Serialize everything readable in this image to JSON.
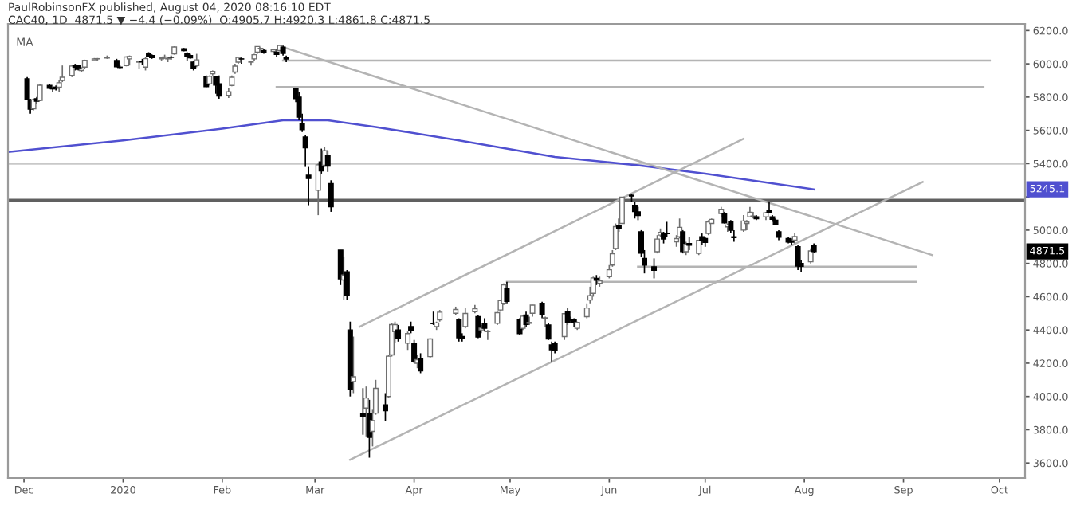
{
  "chart_data": {
    "type": "candlestick",
    "annotations": [
      "PaulRobinsonFX published, August 04, 2020 08:16:10 EDT",
      "CAC40, 1D  4871.5 ▼ −4.4 (−0.09%)  O:4905.7 H:4920.3 L:4861.8 C:4871.5",
      "MA",
      "5245.1",
      "4871.5"
    ],
    "xlim": [
      "2019-11-26",
      "2020-10-09"
    ],
    "xticks": [
      {
        "value": "2019-12-01",
        "label": "Dec"
      },
      {
        "value": "2020-01-01",
        "label": "2020"
      },
      {
        "value": "2020-02-01",
        "label": "Feb"
      },
      {
        "value": "2020-03-01",
        "label": "Mar"
      },
      {
        "value": "2020-04-01",
        "label": "Apr"
      },
      {
        "value": "2020-05-01",
        "label": "May"
      },
      {
        "value": "2020-06-01",
        "label": "Jun"
      },
      {
        "value": "2020-07-01",
        "label": "Jul"
      },
      {
        "value": "2020-08-01",
        "label": "Aug"
      },
      {
        "value": "2020-09-01",
        "label": "Sep"
      },
      {
        "value": "2020-10-01",
        "label": "Oct"
      }
    ],
    "ylim": [
      3510,
      6240
    ],
    "yticks": [
      {
        "value": 3600,
        "label": "3600.0"
      },
      {
        "value": 3800,
        "label": "3800.0"
      },
      {
        "value": 4000,
        "label": "4000.0"
      },
      {
        "value": 4200,
        "label": "4200.0"
      },
      {
        "value": 4400,
        "label": "4400.0"
      },
      {
        "value": 4600,
        "label": "4600.0"
      },
      {
        "value": 4800,
        "label": "4800.0"
      },
      {
        "value": 5000,
        "label": "5000.0"
      },
      {
        "value": 5200,
        "label": null
      },
      {
        "value": 5400,
        "label": "5400.0"
      },
      {
        "value": 5600,
        "label": "5600.0"
      },
      {
        "value": 5800,
        "label": "5800.0"
      },
      {
        "value": 6000,
        "label": "6000.0"
      },
      {
        "value": 6200,
        "label": "6200.0"
      }
    ],
    "grid": false,
    "legend": false,
    "ref_lines": [
      {
        "axis": "y",
        "value": 5400,
        "color": "#c8c8c8"
      },
      {
        "axis": "y",
        "value": 5180,
        "color": "#606060"
      }
    ],
    "x": [
      "2019-12-02",
      "2019-12-03",
      "2019-12-04",
      "2019-12-05",
      "2019-12-06",
      "2019-12-09",
      "2019-12-10",
      "2019-12-11",
      "2019-12-12",
      "2019-12-13",
      "2019-12-16",
      "2019-12-17",
      "2019-12-18",
      "2019-12-19",
      "2019-12-20",
      "2019-12-23",
      "2019-12-24",
      "2019-12-27",
      "2019-12-30",
      "2019-12-31",
      "2020-01-02",
      "2020-01-03",
      "2020-01-06",
      "2020-01-07",
      "2020-01-08",
      "2020-01-09",
      "2020-01-10",
      "2020-01-13",
      "2020-01-14",
      "2020-01-15",
      "2020-01-16",
      "2020-01-17",
      "2020-01-20",
      "2020-01-21",
      "2020-01-22",
      "2020-01-23",
      "2020-01-24",
      "2020-01-27",
      "2020-01-28",
      "2020-01-29",
      "2020-01-30",
      "2020-01-31",
      "2020-02-03",
      "2020-02-04",
      "2020-02-05",
      "2020-02-06",
      "2020-02-07",
      "2020-02-10",
      "2020-02-11",
      "2020-02-12",
      "2020-02-13",
      "2020-02-14",
      "2020-02-17",
      "2020-02-18",
      "2020-02-19",
      "2020-02-20",
      "2020-02-21",
      "2020-02-24",
      "2020-02-25",
      "2020-02-26",
      "2020-02-27",
      "2020-02-28",
      "2020-03-02",
      "2020-03-03",
      "2020-03-04",
      "2020-03-05",
      "2020-03-06",
      "2020-03-09",
      "2020-03-10",
      "2020-03-11",
      "2020-03-12",
      "2020-03-13",
      "2020-03-16",
      "2020-03-17",
      "2020-03-18",
      "2020-03-19",
      "2020-03-20",
      "2020-03-23",
      "2020-03-24",
      "2020-03-25",
      "2020-03-26",
      "2020-03-27",
      "2020-03-30",
      "2020-03-31",
      "2020-04-01",
      "2020-04-02",
      "2020-04-03",
      "2020-04-06",
      "2020-04-07",
      "2020-04-08",
      "2020-04-09",
      "2020-04-14",
      "2020-04-15",
      "2020-04-16",
      "2020-04-17",
      "2020-04-20",
      "2020-04-21",
      "2020-04-22",
      "2020-04-23",
      "2020-04-24",
      "2020-04-27",
      "2020-04-28",
      "2020-04-29",
      "2020-04-30",
      "2020-05-04",
      "2020-05-05",
      "2020-05-06",
      "2020-05-07",
      "2020-05-08",
      "2020-05-11",
      "2020-05-12",
      "2020-05-13",
      "2020-05-14",
      "2020-05-15",
      "2020-05-18",
      "2020-05-19",
      "2020-05-20",
      "2020-05-21",
      "2020-05-22",
      "2020-05-25",
      "2020-05-26",
      "2020-05-27",
      "2020-05-28",
      "2020-05-29",
      "2020-06-01",
      "2020-06-02",
      "2020-06-03",
      "2020-06-04",
      "2020-06-05",
      "2020-06-08",
      "2020-06-09",
      "2020-06-10",
      "2020-06-11",
      "2020-06-12",
      "2020-06-15",
      "2020-06-16",
      "2020-06-17",
      "2020-06-18",
      "2020-06-19",
      "2020-06-22",
      "2020-06-23",
      "2020-06-24",
      "2020-06-25",
      "2020-06-26",
      "2020-06-29",
      "2020-06-30",
      "2020-07-01",
      "2020-07-02",
      "2020-07-03",
      "2020-07-06",
      "2020-07-07",
      "2020-07-08",
      "2020-07-09",
      "2020-07-10",
      "2020-07-13",
      "2020-07-14",
      "2020-07-15",
      "2020-07-16",
      "2020-07-17",
      "2020-07-20",
      "2020-07-21",
      "2020-07-22",
      "2020-07-23",
      "2020-07-24",
      "2020-07-27",
      "2020-07-28",
      "2020-07-29",
      "2020-07-30",
      "2020-07-31",
      "2020-08-03",
      "2020-08-04"
    ],
    "ohlc": [
      [
        5910,
        5920,
        5780,
        5786
      ],
      [
        5780,
        5790,
        5700,
        5727
      ],
      [
        5730,
        5790,
        5720,
        5784
      ],
      [
        5790,
        5800,
        5760,
        5775
      ],
      [
        5780,
        5880,
        5775,
        5871
      ],
      [
        5870,
        5880,
        5850,
        5853
      ],
      [
        5850,
        5860,
        5830,
        5849
      ],
      [
        5860,
        5870,
        5840,
        5854
      ],
      [
        5860,
        5900,
        5830,
        5886
      ],
      [
        5900,
        5990,
        5890,
        5919
      ],
      [
        5930,
        5990,
        5920,
        5987
      ],
      [
        5990,
        6000,
        5960,
        5980
      ],
      [
        5990,
        5995,
        5960,
        5967
      ],
      [
        5960,
        5980,
        5950,
        5970
      ],
      [
        5980,
        6025,
        5970,
        6021
      ],
      [
        6020,
        6035,
        6015,
        6029
      ],
      [
        6030,
        6035,
        6020,
        6030
      ],
      [
        6035,
        6050,
        6030,
        6037
      ],
      [
        6020,
        6030,
        5980,
        5982
      ],
      [
        5980,
        5990,
        5970,
        5978
      ],
      [
        5990,
        6045,
        5985,
        6041
      ],
      [
        6030,
        6050,
        5990,
        6044
      ],
      [
        6010,
        6020,
        5970,
        6013
      ],
      [
        6015,
        6030,
        5995,
        6012
      ],
      [
        5980,
        6040,
        5960,
        6031
      ],
      [
        6060,
        6070,
        6040,
        6042
      ],
      [
        6050,
        6057,
        6030,
        6037
      ],
      [
        6030,
        6040,
        6020,
        6036
      ],
      [
        6040,
        6055,
        6030,
        6040
      ],
      [
        6030,
        6040,
        6010,
        6032
      ],
      [
        6040,
        6050,
        6025,
        6039
      ],
      [
        6060,
        6105,
        6055,
        6101
      ],
      [
        6090,
        6095,
        6075,
        6079
      ],
      [
        6060,
        6070,
        6020,
        6045
      ],
      [
        6050,
        6060,
        6030,
        6036
      ],
      [
        6010,
        6020,
        5960,
        5971
      ],
      [
        5990,
        6060,
        5980,
        6024
      ],
      [
        5920,
        5930,
        5860,
        5863
      ],
      [
        5880,
        5930,
        5870,
        5925
      ],
      [
        5940,
        5960,
        5930,
        5954
      ],
      [
        5920,
        5925,
        5820,
        5872
      ],
      [
        5880,
        5930,
        5790,
        5806
      ],
      [
        5810,
        5855,
        5795,
        5832
      ],
      [
        5870,
        5930,
        5865,
        5919
      ],
      [
        5950,
        6000,
        5940,
        5986
      ],
      [
        6010,
        6040,
        6000,
        6038
      ],
      [
        6030,
        6040,
        6000,
        6029
      ],
      [
        6010,
        6020,
        5990,
        6016
      ],
      [
        6030,
        6060,
        6020,
        6055
      ],
      [
        6070,
        6105,
        6060,
        6104
      ],
      [
        6090,
        6100,
        6070,
        6093
      ],
      [
        6080,
        6090,
        6060,
        6069
      ],
      [
        6075,
        6085,
        6070,
        6085
      ],
      [
        6070,
        6090,
        6040,
        6057
      ],
      [
        6080,
        6115,
        6075,
        6111
      ],
      [
        6100,
        6110,
        6050,
        6063
      ],
      [
        6040,
        6050,
        6010,
        6029
      ],
      [
        5850,
        5850,
        5770,
        5791
      ],
      [
        5800,
        5830,
        5660,
        5679
      ],
      [
        5640,
        5700,
        5590,
        5604
      ],
      [
        5560,
        5570,
        5380,
        5495
      ],
      [
        5330,
        5380,
        5150,
        5310
      ],
      [
        5240,
        5400,
        5090,
        5393
      ],
      [
        5410,
        5490,
        5340,
        5356
      ],
      [
        5390,
        5500,
        5380,
        5478
      ],
      [
        5450,
        5480,
        5350,
        5385
      ],
      [
        5280,
        5300,
        5110,
        5140
      ],
      [
        4880,
        4880,
        4670,
        4707
      ],
      [
        4700,
        4840,
        4580,
        4730
      ],
      [
        4750,
        4760,
        4580,
        4610
      ],
      [
        4400,
        4450,
        4000,
        4044
      ],
      [
        4090,
        4360,
        4020,
        4118
      ],
      [
        3900,
        4050,
        3770,
        3881
      ],
      [
        3930,
        4060,
        3760,
        3991
      ],
      [
        3900,
        3980,
        3632,
        3754
      ],
      [
        3790,
        3920,
        3700,
        3855
      ],
      [
        3900,
        4100,
        3890,
        4049
      ],
      [
        3950,
        4020,
        3850,
        3914
      ],
      [
        4000,
        4250,
        3990,
        4242
      ],
      [
        4250,
        4440,
        4240,
        4432
      ],
      [
        4390,
        4450,
        4320,
        4432
      ],
      [
        4400,
        4430,
        4330,
        4351
      ],
      [
        4320,
        4390,
        4280,
        4378
      ],
      [
        4420,
        4450,
        4380,
        4396
      ],
      [
        4320,
        4340,
        4200,
        4208
      ],
      [
        4200,
        4250,
        4170,
        4221
      ],
      [
        4230,
        4260,
        4140,
        4154
      ],
      [
        4240,
        4350,
        4230,
        4346
      ],
      [
        4440,
        4510,
        4430,
        4438
      ],
      [
        4420,
        4450,
        4400,
        4442
      ],
      [
        4460,
        4520,
        4450,
        4507
      ],
      [
        4500,
        4540,
        4490,
        4523
      ],
      [
        4460,
        4470,
        4330,
        4353
      ],
      [
        4360,
        4380,
        4330,
        4350
      ],
      [
        4420,
        4530,
        4410,
        4499
      ],
      [
        4510,
        4550,
        4500,
        4528
      ],
      [
        4480,
        4490,
        4350,
        4357
      ],
      [
        4400,
        4430,
        4380,
        4411
      ],
      [
        4440,
        4470,
        4390,
        4410
      ],
      [
        4390,
        4400,
        4340,
        4393
      ],
      [
        4440,
        4510,
        4430,
        4504
      ],
      [
        4520,
        4580,
        4510,
        4577
      ],
      [
        4560,
        4680,
        4550,
        4671
      ],
      [
        4650,
        4690,
        4560,
        4572
      ],
      [
        4460,
        4470,
        4370,
        4378
      ],
      [
        4410,
        4490,
        4400,
        4483
      ],
      [
        4490,
        4510,
        4420,
        4433
      ],
      [
        4440,
        4480,
        4430,
        4445
      ],
      [
        4500,
        4550,
        4480,
        4549
      ],
      [
        4560,
        4570,
        4470,
        4490
      ],
      [
        4470,
        4480,
        4420,
        4473
      ],
      [
        4430,
        4440,
        4340,
        4345
      ],
      [
        4310,
        4330,
        4210,
        4281
      ],
      [
        4320,
        4330,
        4260,
        4277
      ],
      [
        4360,
        4500,
        4340,
        4498
      ],
      [
        4510,
        4530,
        4430,
        4443
      ],
      [
        4460,
        4480,
        4440,
        4458
      ],
      [
        4460,
        4470,
        4420,
        4446
      ],
      [
        4410,
        4450,
        4400,
        4445
      ],
      [
        4480,
        4560,
        4470,
        4532
      ],
      [
        4580,
        4660,
        4560,
        4606
      ],
      [
        4620,
        4720,
        4600,
        4713
      ],
      [
        4710,
        4730,
        4670,
        4699
      ],
      [
        4680,
        4720,
        4660,
        4695
      ],
      [
        4720,
        4790,
        4710,
        4762
      ],
      [
        4790,
        4880,
        4780,
        4858
      ],
      [
        4890,
        5040,
        4880,
        5021
      ],
      [
        5030,
        5070,
        4990,
        5012
      ],
      [
        5040,
        5200,
        5040,
        5198
      ],
      [
        5210,
        5220,
        5170,
        5205
      ],
      [
        5150,
        5170,
        5070,
        5112
      ],
      [
        5110,
        5140,
        5060,
        5088
      ],
      [
        4990,
        5000,
        4840,
        4862
      ],
      [
        4830,
        4880,
        4740,
        4790
      ],
      [
        4780,
        4830,
        4710,
        4759
      ],
      [
        4870,
        4970,
        4860,
        4946
      ],
      [
        4970,
        5010,
        4960,
        4987
      ],
      [
        4980,
        4990,
        4920,
        4947
      ],
      [
        4980,
        5050,
        4960,
        4979
      ],
      [
        4930,
        4970,
        4900,
        4949
      ],
      [
        4960,
        5070,
        4950,
        5017
      ],
      [
        4990,
        5000,
        4860,
        4871
      ],
      [
        4870,
        4930,
        4850,
        4915
      ],
      [
        4920,
        4960,
        4880,
        4910
      ],
      [
        4860,
        4940,
        4850,
        4939
      ],
      [
        4960,
        4980,
        4910,
        4936
      ],
      [
        4950,
        4960,
        4900,
        4926
      ],
      [
        4980,
        5060,
        4970,
        5049
      ],
      [
        5040,
        5070,
        5040,
        5065
      ],
      [
        5100,
        5140,
        5080,
        5126
      ],
      [
        5100,
        5110,
        5040,
        5043
      ],
      [
        5020,
        5040,
        4990,
        5031
      ],
      [
        5050,
        5060,
        4980,
        4999
      ],
      [
        4960,
        5000,
        4930,
        4955
      ],
      [
        5000,
        5090,
        4990,
        5055
      ],
      [
        5040,
        5060,
        5000,
        5050
      ],
      [
        5080,
        5140,
        5080,
        5108
      ],
      [
        5080,
        5110,
        5070,
        5085
      ],
      [
        5080,
        5090,
        5060,
        5069
      ],
      [
        5080,
        5110,
        5060,
        5104
      ],
      [
        5120,
        5170,
        5100,
        5105
      ],
      [
        5080,
        5090,
        5050,
        5065
      ],
      [
        5060,
        5070,
        5030,
        5035
      ],
      [
        4990,
        5000,
        4940,
        4957
      ],
      [
        4950,
        4960,
        4920,
        4929
      ],
      [
        4940,
        4950,
        4910,
        4928
      ],
      [
        4940,
        4980,
        4920,
        4962
      ],
      [
        4900,
        4910,
        4760,
        4784
      ],
      [
        4800,
        4820,
        4750,
        4783
      ],
      [
        4810,
        4890,
        4800,
        4875
      ],
      [
        4905.7,
        4920.3,
        4861.8,
        4871.5
      ]
    ],
    "series": [
      {
        "type": "line",
        "color": "#5050d0",
        "x": [
          "2019-11-26",
          "2020-01-01",
          "2020-02-01",
          "2020-02-20",
          "2020-03-05",
          "2020-03-20",
          "2020-04-15",
          "2020-05-15",
          "2020-06-10",
          "2020-07-01",
          "2020-08-04"
        ],
        "values": [
          5470,
          5540,
          5610,
          5660,
          5660,
          5620,
          5540,
          5440,
          5390,
          5340,
          5245.1
        ]
      },
      {
        "type": "line",
        "color": "#b4b4b4",
        "x": [
          "2020-02-20",
          "2020-09-10"
        ],
        "values": [
          6100,
          4850
        ]
      },
      {
        "type": "line",
        "color": "#b4b4b4",
        "x": [
          "2020-03-15",
          "2020-07-13"
        ],
        "values": [
          4420,
          5550
        ]
      },
      {
        "type": "line",
        "color": "#b4b4b4",
        "x": [
          "2020-03-12",
          "2020-09-07"
        ],
        "values": [
          3620,
          5290
        ]
      },
      {
        "type": "line",
        "color": "#b4b4b4",
        "x": [
          "2020-02-20",
          "2020-09-28"
        ],
        "values": [
          6020,
          6020
        ]
      },
      {
        "type": "line",
        "color": "#b4b4b4",
        "x": [
          "2020-02-18",
          "2020-09-26"
        ],
        "values": [
          5860,
          5860
        ]
      },
      {
        "type": "line",
        "color": "#b4b4b4",
        "x": [
          "2020-06-10",
          "2020-09-05"
        ],
        "values": [
          4780,
          4780
        ]
      },
      {
        "type": "line",
        "color": "#b4b4b4",
        "x": [
          "2020-04-30",
          "2020-09-05"
        ],
        "values": [
          4690,
          4690
        ]
      }
    ]
  }
}
